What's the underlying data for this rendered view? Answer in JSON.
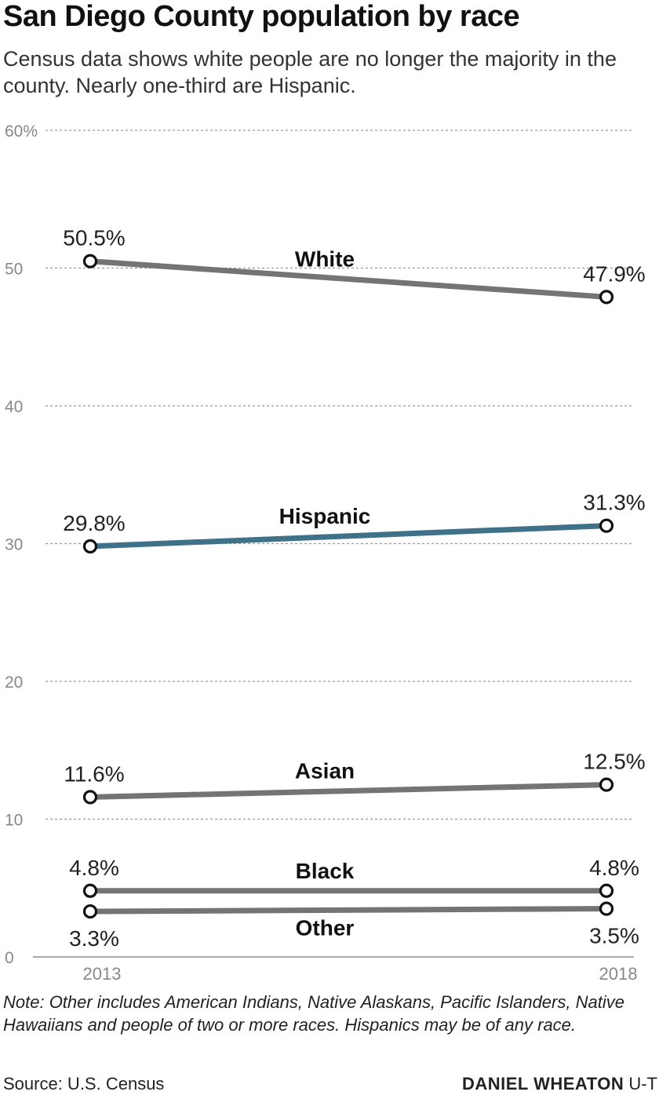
{
  "title": "San Diego County population by race",
  "subtitle": "Census data shows white people are no longer the majority in the county. Nearly one-third are Hispanic.",
  "note": "Note: Other includes American Indians, Native Alaskans, Pacific Islanders, Native Hawaiians and people of two or more races. Hispanics may be of any race.",
  "source": "Source: U.S. Census",
  "credit": {
    "name": "DANIEL WHEATON",
    "org": "U-T"
  },
  "colors": {
    "gray_series": "#747474",
    "hispanic": "#3f7189",
    "grid": "#999999"
  },
  "chart_data": {
    "type": "line",
    "x": [
      "2013",
      "2018"
    ],
    "ylim": [
      0,
      60
    ],
    "yticks": [
      {
        "value": 0,
        "label": "0"
      },
      {
        "value": 10,
        "label": "10"
      },
      {
        "value": 20,
        "label": "20"
      },
      {
        "value": 30,
        "label": "30"
      },
      {
        "value": 40,
        "label": "40"
      },
      {
        "value": 50,
        "label": "50"
      },
      {
        "value": 60,
        "label": "60%"
      }
    ],
    "grid": true,
    "series": [
      {
        "name": "White",
        "values": [
          50.5,
          47.9
        ],
        "labels": [
          "50.5%",
          "47.9%"
        ],
        "color": "#747474"
      },
      {
        "name": "Hispanic",
        "values": [
          29.8,
          31.3
        ],
        "labels": [
          "29.8%",
          "31.3%"
        ],
        "color": "#3f7189"
      },
      {
        "name": "Asian",
        "values": [
          11.6,
          12.5
        ],
        "labels": [
          "11.6%",
          "12.5%"
        ],
        "color": "#747474"
      },
      {
        "name": "Black",
        "values": [
          4.8,
          4.8
        ],
        "labels": [
          "4.8%",
          "4.8%"
        ],
        "color": "#747474"
      },
      {
        "name": "Other",
        "values": [
          3.3,
          3.5
        ],
        "labels": [
          "3.3%",
          "3.5%"
        ],
        "color": "#747474"
      }
    ]
  }
}
